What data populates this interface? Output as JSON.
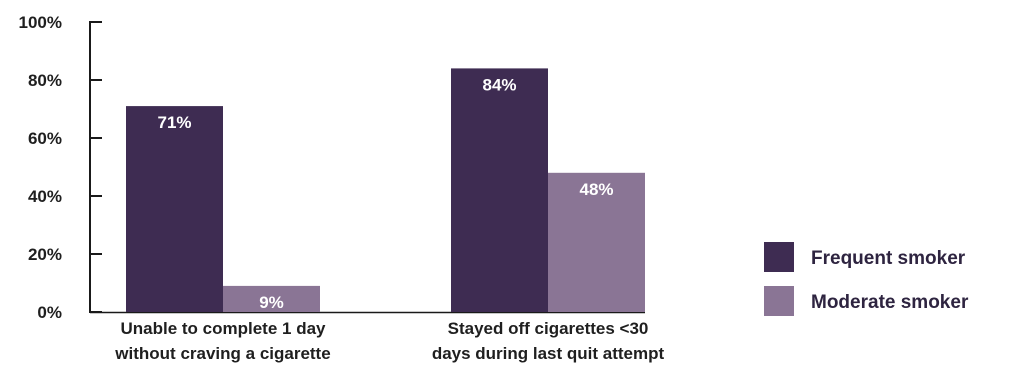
{
  "chart_data": {
    "type": "bar",
    "categories": [
      [
        "Unable to complete 1 day",
        "without craving a cigarette"
      ],
      [
        "Stayed off cigarettes <30",
        "days during last quit attempt"
      ]
    ],
    "series": [
      {
        "name": "Frequent smoker",
        "values": [
          71,
          84
        ],
        "labels": [
          "71%",
          "84%"
        ],
        "color": "#3e2c52"
      },
      {
        "name": "Moderate smoker",
        "values": [
          9,
          48
        ],
        "labels": [
          "9%",
          "48%"
        ],
        "color": "#8a7595"
      }
    ],
    "title": "",
    "xlabel": "",
    "ylabel": "",
    "ylim": [
      0,
      100
    ],
    "yticks": [
      0,
      20,
      40,
      60,
      80,
      100
    ],
    "ytick_labels": [
      "0%",
      "20%",
      "40%",
      "60%",
      "80%",
      "100%"
    ],
    "grid": false,
    "legend_position": "right"
  }
}
